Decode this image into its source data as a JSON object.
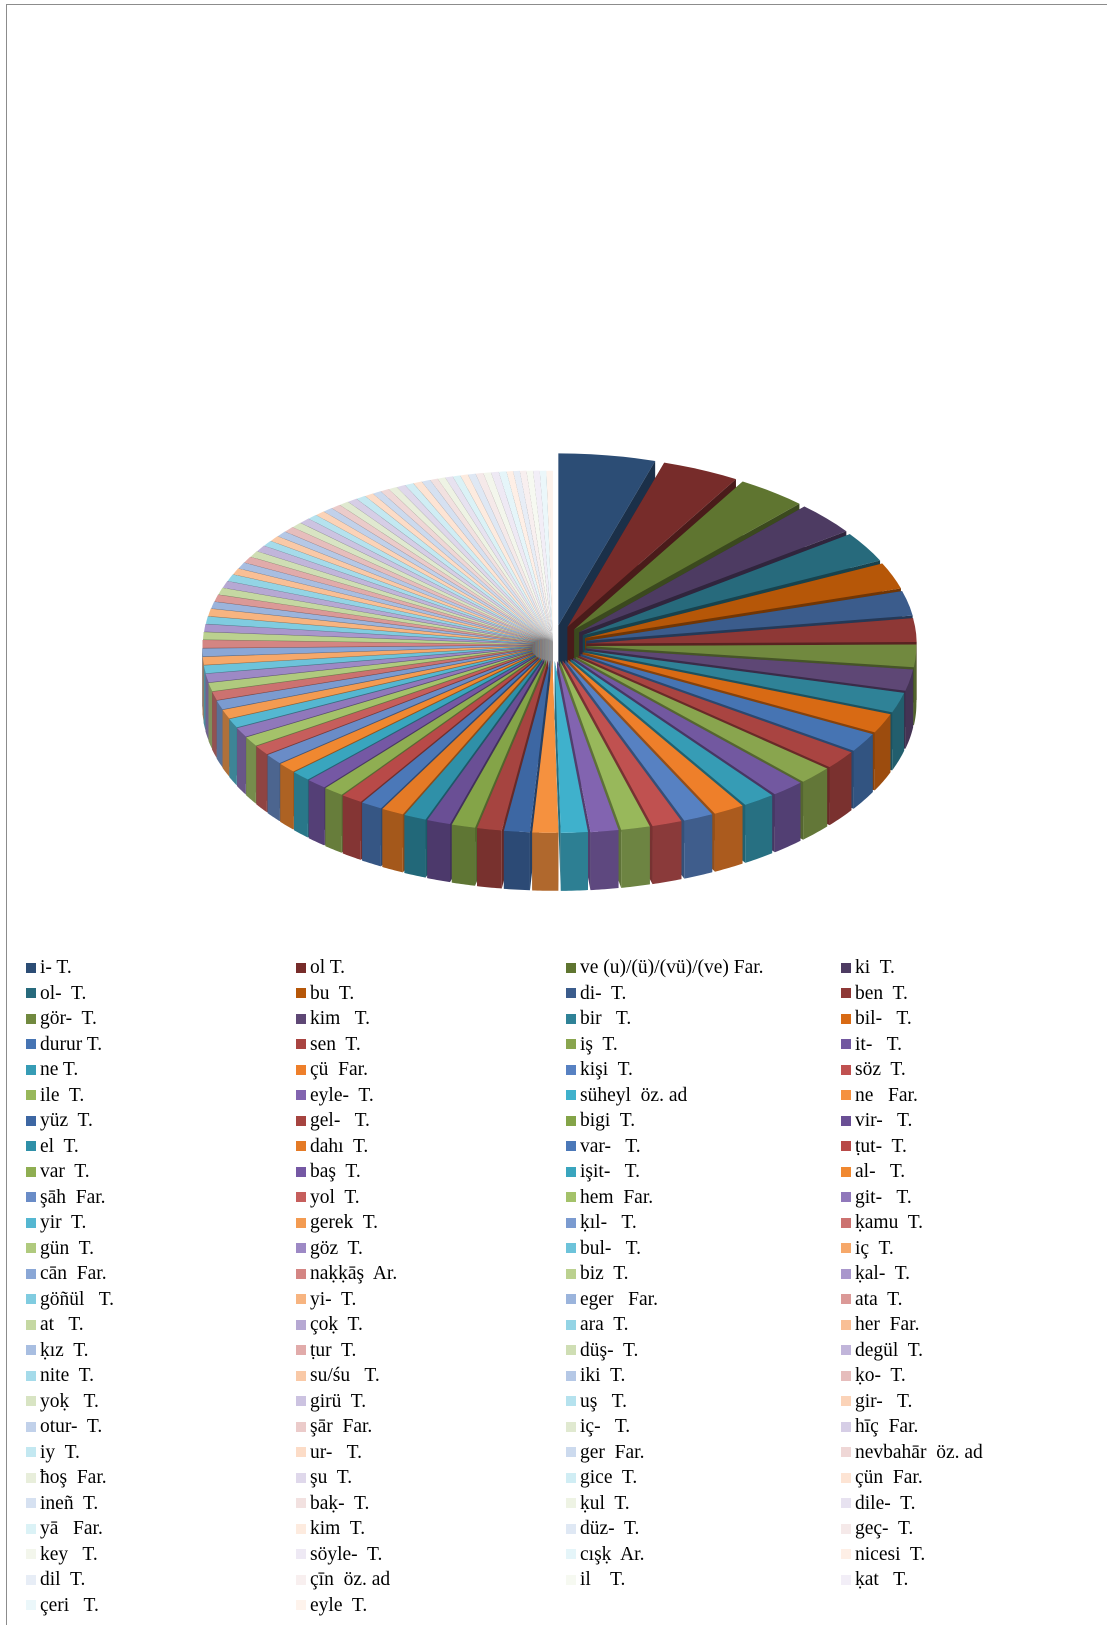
{
  "chart_data": {
    "type": "pie",
    "style": "3d-exploded",
    "legend_position": "bottom",
    "categories": [
      "i- T.",
      "ol T.",
      "ve (u)/(ü)/(vü)/(ve) Far.",
      "ki T.",
      "ol- T.",
      "bu T.",
      "di- T.",
      "ben T.",
      "gör- T.",
      "kim T.",
      "bir T.",
      "bil- T.",
      "durur T.",
      "sen T.",
      "iş T.",
      "it- T.",
      "ne T.",
      "çü Far.",
      "kişi T.",
      "söz T.",
      "ile T.",
      "eyle- T.",
      "süheyl öz. ad",
      "ne Far.",
      "yüz T.",
      "gel- T.",
      "bigi T.",
      "vir- T.",
      "el T.",
      "dahı T.",
      "var- T.",
      "ṭut- T.",
      "var T.",
      "baş T.",
      "işit- T.",
      "al- T.",
      "şāh Far.",
      "yol T.",
      "hem Far.",
      "git- T.",
      "yir T.",
      "gerek T.",
      "ḳıl- T.",
      "ḳamu T.",
      "gün T.",
      "göz T.",
      "bul- T.",
      "iç T.",
      "cān Far.",
      "naḳḳāş Ar.",
      "biz T.",
      "ḳal- T.",
      "göñül T.",
      "yi- T.",
      "eger Far.",
      "ata T.",
      "at T.",
      "çoḳ T.",
      "ara T.",
      "her Far.",
      "ḳız T.",
      "ṭur T.",
      "düş- T.",
      "degül T.",
      "nite T.",
      "su/śu T.",
      "iki T.",
      "ḳo- T.",
      "yoḳ T.",
      "girü T.",
      "uş T.",
      "gir- T.",
      "otur- T.",
      "şār Far.",
      "iç- T.",
      "hīç Far.",
      "iy T.",
      "ur- T.",
      "ger Far.",
      "nevbahār öz. ad",
      "ħoş Far.",
      "şu T.",
      "gice T.",
      "çün Far.",
      "ineñ T.",
      "baḳ- T.",
      "ḳul T.",
      "dile- T.",
      "yā Far.",
      "kim T.",
      "düz- T.",
      "geç- T.",
      "key T.",
      "söyle- T.",
      "cışḳ Ar.",
      "nicesi T.",
      "dil T.",
      "çīn öz. ad",
      "il T.",
      "ḳat T.",
      "çeri T.",
      "eyle T."
    ],
    "legend_display": [
      "i- T.",
      "ol T.",
      "ve (u)/(ü)/(vü)/(ve) Far.",
      "ki  T.",
      "ol-  T.",
      "bu  T.",
      "di-  T.",
      "ben  T.",
      "gör-  T.",
      "kim   T.",
      "bir   T.",
      "bil-   T.",
      "durur T.",
      "sen  T.",
      "iş  T.",
      "it-   T.",
      "ne T.",
      "çü  Far.",
      "kişi  T.",
      "söz  T.",
      "ile  T.",
      "eyle-  T.",
      "süheyl  öz. ad",
      "ne   Far.",
      "yüz  T.",
      "gel-   T.",
      "bigi  T.",
      "vir-   T.",
      "el  T.",
      "dahı  T.",
      "var-   T.",
      "ṭut-  T.",
      "var  T.",
      "baş  T.",
      "işit-   T.",
      "al-   T.",
      "şāh  Far.",
      "yol  T.",
      "hem  Far.",
      "git-   T.",
      "yir  T.",
      "gerek  T.",
      "ḳıl-   T.",
      "ḳamu  T.",
      "gün  T.",
      "göz  T.",
      "bul-   T.",
      "iç  T.",
      "cān  Far.",
      "naḳḳāş  Ar.",
      "biz  T.",
      "ḳal-  T.",
      "göñül   T.",
      "yi-  T.",
      "eger   Far.",
      "ata  T.",
      "at   T.",
      "çoḳ  T.",
      "ara  T.",
      "her  Far.",
      "ḳız  T.",
      "ṭur  T.",
      "düş-  T.",
      "degül  T.",
      "nite  T.",
      "su/śu   T.",
      "iki  T.",
      "ḳo-  T.",
      "yoḳ   T.",
      "girü  T.",
      "uş   T.",
      "gir-   T.",
      "otur-  T.",
      "şār  Far.",
      "iç-   T.",
      "hīç  Far.",
      "iy  T.",
      "ur-   T.",
      "ger  Far.",
      "nevbahār  öz. ad",
      "ħoş  Far.",
      "şu  T.",
      "gice  T.",
      "çün  Far.",
      "ineñ  T.",
      "baḳ-  T.",
      "ḳul  T.",
      "dile-  T.",
      "yā   Far.",
      "kim  T.",
      "düz-  T.",
      "geç-  T.",
      "key   T.",
      "söyle-  T.",
      "cışḳ  Ar.",
      "nicesi  T.",
      "dil  T.",
      "çīn  öz. ad",
      "il    T.",
      "ḳat   T.",
      "çeri   T.",
      "eyle  T."
    ],
    "values": [
      90,
      72,
      65,
      58,
      54,
      47,
      44,
      42,
      40,
      38,
      36,
      35,
      34,
      33,
      32,
      31,
      30,
      29,
      28,
      28,
      27,
      26,
      25,
      24,
      24,
      23,
      22,
      22,
      21,
      21,
      20,
      20,
      19,
      19,
      18,
      18,
      18,
      17,
      17,
      17,
      16,
      16,
      16,
      15,
      15,
      15,
      14,
      14,
      14,
      14,
      13,
      13,
      13,
      13,
      12,
      12,
      12,
      12,
      12,
      11,
      11,
      11,
      11,
      11,
      10,
      10,
      10,
      10,
      10,
      10,
      9,
      9,
      9,
      9,
      9,
      9,
      9,
      8,
      8,
      8,
      8,
      8,
      8,
      8,
      8,
      7,
      7,
      7,
      7,
      7,
      7,
      7,
      7,
      7,
      7,
      6,
      6,
      6,
      6,
      6,
      6,
      6
    ],
    "colors": [
      "#2c4d75",
      "#772c2a",
      "#5f7530",
      "#4d3b62",
      "#276a7c",
      "#b65708",
      "#3b5c8c",
      "#8e3836",
      "#71893f",
      "#5e4775",
      "#2f8297",
      "#d86a14",
      "#4674b3",
      "#a94441",
      "#89a54e",
      "#7258a0",
      "#369cb5",
      "#ee7f2a",
      "#5781c2",
      "#c05150",
      "#98b85b",
      "#8264b0",
      "#3fb1cc",
      "#f5913f",
      "#3d67a3",
      "#a64440",
      "#84a448",
      "#6a4f95",
      "#2f90a8",
      "#e47a26",
      "#4b78b8",
      "#b84a48",
      "#8fae52",
      "#7558a4",
      "#39a5be",
      "#f08830",
      "#6a8cc7",
      "#c65e5c",
      "#a4c26a",
      "#9078bb",
      "#55b7d1",
      "#f39b51",
      "#7b9bd0",
      "#cc7270",
      "#b0ca7e",
      "#9d89c5",
      "#6dc3da",
      "#f6a86a",
      "#8aa7d6",
      "#d48583",
      "#bbd18f",
      "#a997cc",
      "#80cce0",
      "#f7b480",
      "#9bb4dc",
      "#db9997",
      "#c5d8a2",
      "#b6a8d3",
      "#93d4e5",
      "#f9bf95",
      "#a8bee1",
      "#e1abaa",
      "#cfdeb4",
      "#c1b5da",
      "#a5dbea",
      "#f9c9a7",
      "#b5c8e6",
      "#e6bdbc",
      "#d8e4c3",
      "#ccc3e1",
      "#b5e2ee",
      "#fbd3b8",
      "#c1d1ea",
      "#ebcbca",
      "#e0e9d0",
      "#d6cee6",
      "#c3e8f1",
      "#fcdcc7",
      "#ccdaee",
      "#efd7d6",
      "#e8eedb",
      "#dfd8eb",
      "#d0edf4",
      "#fde4d4",
      "#d6e1f1",
      "#f2e1e0",
      "#eef3e4",
      "#e7e2f0",
      "#dbf2f6",
      "#fdebdf",
      "#dfe8f4",
      "#f5e9e9",
      "#f3f6ec",
      "#eee9f4",
      "#e5f5f9",
      "#feefe6",
      "#e7edf6",
      "#f8efef",
      "#f6f9f1",
      "#f2eef7",
      "#ebf7fa",
      "#fef3ec"
    ]
  }
}
